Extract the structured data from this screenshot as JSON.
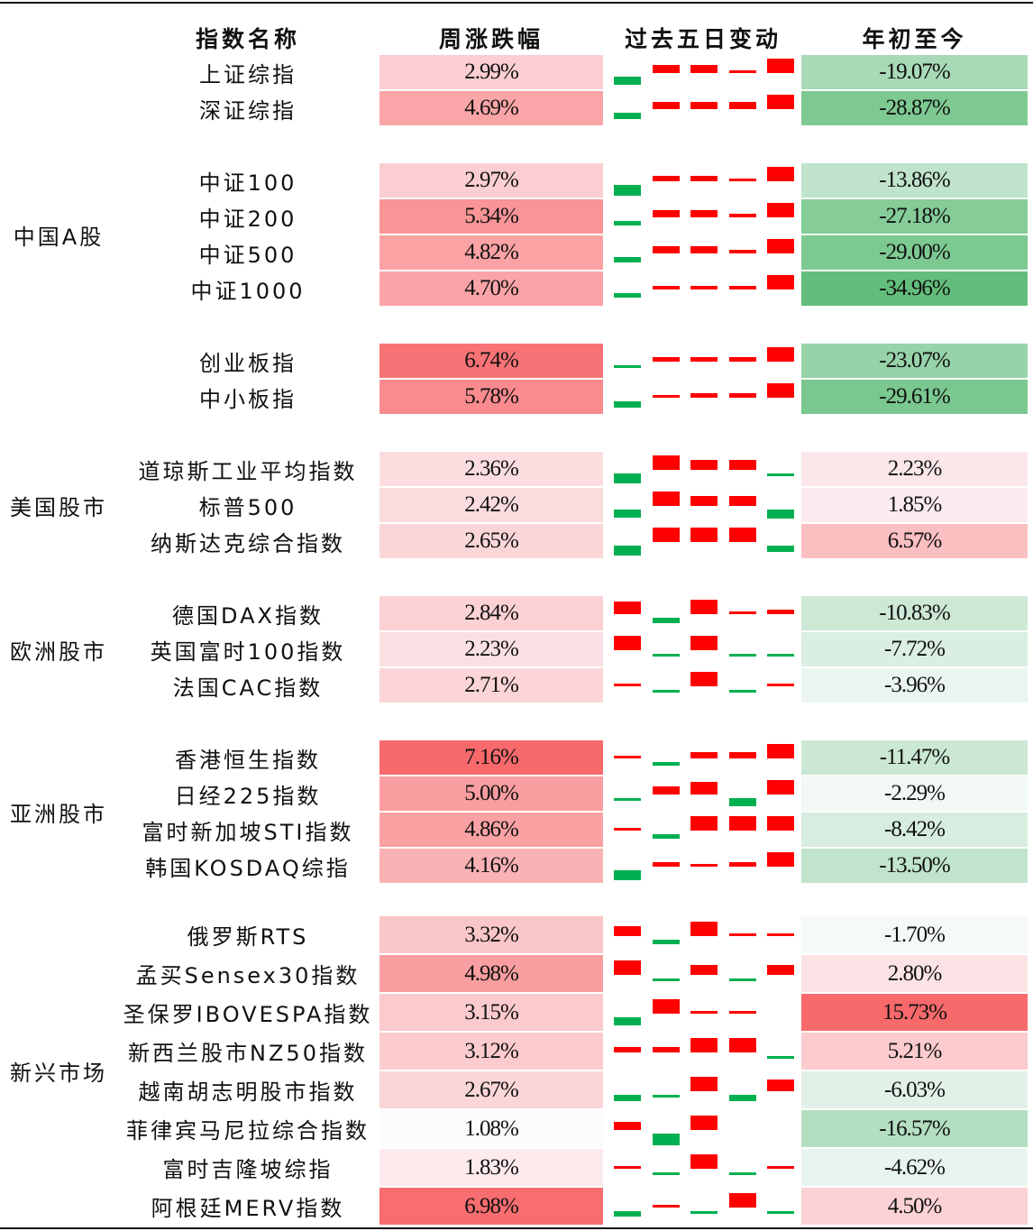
{
  "header": {
    "name": "指数名称",
    "week": "周涨跌幅",
    "days": "过去五日变动",
    "ytd": "年初至今"
  },
  "groups": [
    {
      "label": "中国A股",
      "blocks": [
        [
          {
            "name": "上证综指",
            "week": "2.99%",
            "days": [
              -0.8,
              0.8,
              0.8,
              0.2,
              1.5
            ],
            "ytd": "-19.07%"
          },
          {
            "name": "深证综指",
            "week": "4.69%",
            "days": [
              -0.8,
              0.9,
              0.9,
              0.9,
              1.8
            ],
            "ytd": "-28.87%"
          }
        ],
        [
          {
            "name": "中证100",
            "week": "2.97%",
            "days": [
              -1.0,
              0.5,
              0.5,
              0.2,
              1.3
            ],
            "ytd": "-13.86%"
          },
          {
            "name": "中证200",
            "week": "5.34%",
            "days": [
              -0.6,
              0.9,
              0.9,
              0.5,
              1.8
            ],
            "ytd": "-27.18%"
          },
          {
            "name": "中证500",
            "week": "4.82%",
            "days": [
              -0.7,
              0.9,
              0.9,
              0.5,
              1.8
            ],
            "ytd": "-29.00%"
          },
          {
            "name": "中证1000",
            "week": "4.70%",
            "days": [
              -0.6,
              0.5,
              0.5,
              0.5,
              1.8
            ],
            "ytd": "-34.96%"
          }
        ],
        [
          {
            "name": "创业板指",
            "week": "6.74%",
            "days": [
              -0.3,
              0.6,
              0.6,
              0.6,
              2.0
            ],
            "ytd": "-23.07%"
          },
          {
            "name": "中小板指",
            "week": "5.78%",
            "days": [
              -0.8,
              0.2,
              0.6,
              0.6,
              1.8
            ],
            "ytd": "-29.61%"
          }
        ]
      ]
    },
    {
      "label": "美国股市",
      "blocks": [
        [
          {
            "name": "道琼斯工业平均指数",
            "week": "2.36%",
            "days": [
              -1.0,
              1.5,
              1.0,
              1.0,
              -0.3
            ],
            "ytd": "2.23%"
          },
          {
            "name": "标普500",
            "week": "2.42%",
            "days": [
              -0.8,
              1.5,
              1.0,
              1.0,
              -0.9
            ],
            "ytd": "1.85%"
          },
          {
            "name": "纳斯达克综合指数",
            "week": "2.65%",
            "days": [
              -0.8,
              1.2,
              1.2,
              1.2,
              -0.5
            ],
            "ytd": "6.57%"
          }
        ]
      ]
    },
    {
      "label": "欧洲股市",
      "blocks": [
        [
          {
            "name": "德国DAX指数",
            "week": "2.84%",
            "days": [
              1.3,
              -0.6,
              1.5,
              0.2,
              0.5
            ],
            "ytd": "-10.83%"
          },
          {
            "name": "英国富时100指数",
            "week": "2.23%",
            "days": [
              1.5,
              -0.2,
              1.5,
              -0.2,
              -0.2
            ],
            "ytd": "-7.72%"
          },
          {
            "name": "法国CAC指数",
            "week": "2.71%",
            "days": [
              0.3,
              -0.2,
              1.5,
              -0.2,
              0.3
            ],
            "ytd": "-3.96%"
          }
        ]
      ]
    },
    {
      "label": "亚洲股市",
      "blocks": [
        [
          {
            "name": "香港恒生指数",
            "week": "7.16%",
            "days": [
              0.2,
              -0.4,
              0.8,
              0.8,
              1.8
            ],
            "ytd": "-11.47%"
          },
          {
            "name": "日经225指数",
            "week": "5.00%",
            "days": [
              -0.2,
              0.8,
              1.3,
              -0.8,
              1.5
            ],
            "ytd": "-2.29%"
          },
          {
            "name": "富时新加坡STI指数",
            "week": "4.86%",
            "days": [
              0.2,
              -0.4,
              1.2,
              1.2,
              1.2
            ],
            "ytd": "-8.42%"
          },
          {
            "name": "韩国KOSDAQ综指",
            "week": "4.16%",
            "days": [
              -1.0,
              0.5,
              0.2,
              0.5,
              1.5
            ],
            "ytd": "-13.50%"
          }
        ]
      ]
    },
    {
      "label": "新兴市场",
      "blocks": [
        [
          {
            "name": "俄罗斯RTS",
            "week": "3.32%",
            "days": [
              1.0,
              -0.5,
              1.5,
              0.2,
              0.2
            ],
            "ytd": "-1.70%"
          },
          {
            "name": "孟买Sensex30指数",
            "week": "4.98%",
            "days": [
              1.5,
              -0.2,
              1.0,
              -0.2,
              1.0
            ],
            "ytd": "2.80%"
          },
          {
            "name": "圣保罗IBOVESPA指数",
            "week": "3.15%",
            "days": [
              -0.8,
              1.5,
              0.3,
              0.3,
              null
            ],
            "ytd": "15.73%"
          },
          {
            "name": "新西兰股市NZ50指数",
            "week": "3.12%",
            "days": [
              0.6,
              0.6,
              1.5,
              1.5,
              -0.2
            ],
            "ytd": "5.21%"
          },
          {
            "name": "越南胡志明股市指数",
            "week": "2.67%",
            "days": [
              -0.5,
              -0.2,
              1.2,
              -0.5,
              1.0
            ],
            "ytd": "-6.03%"
          },
          {
            "name": "菲律宾马尼拉综合指数",
            "week": "1.08%",
            "days": [
              0.8,
              -1.2,
              1.5,
              null,
              null
            ],
            "ytd": "-16.57%"
          },
          {
            "name": "富时吉隆坡综指",
            "week": "1.83%",
            "days": [
              0.2,
              -0.2,
              1.5,
              -0.2,
              0.3
            ],
            "ytd": "-4.62%"
          },
          {
            "name": "阿根廷MERV指数",
            "week": "6.98%",
            "days": [
              -0.6,
              0.3,
              -0.2,
              1.5,
              -0.2
            ],
            "ytd": "4.50%"
          }
        ]
      ]
    }
  ]
}
